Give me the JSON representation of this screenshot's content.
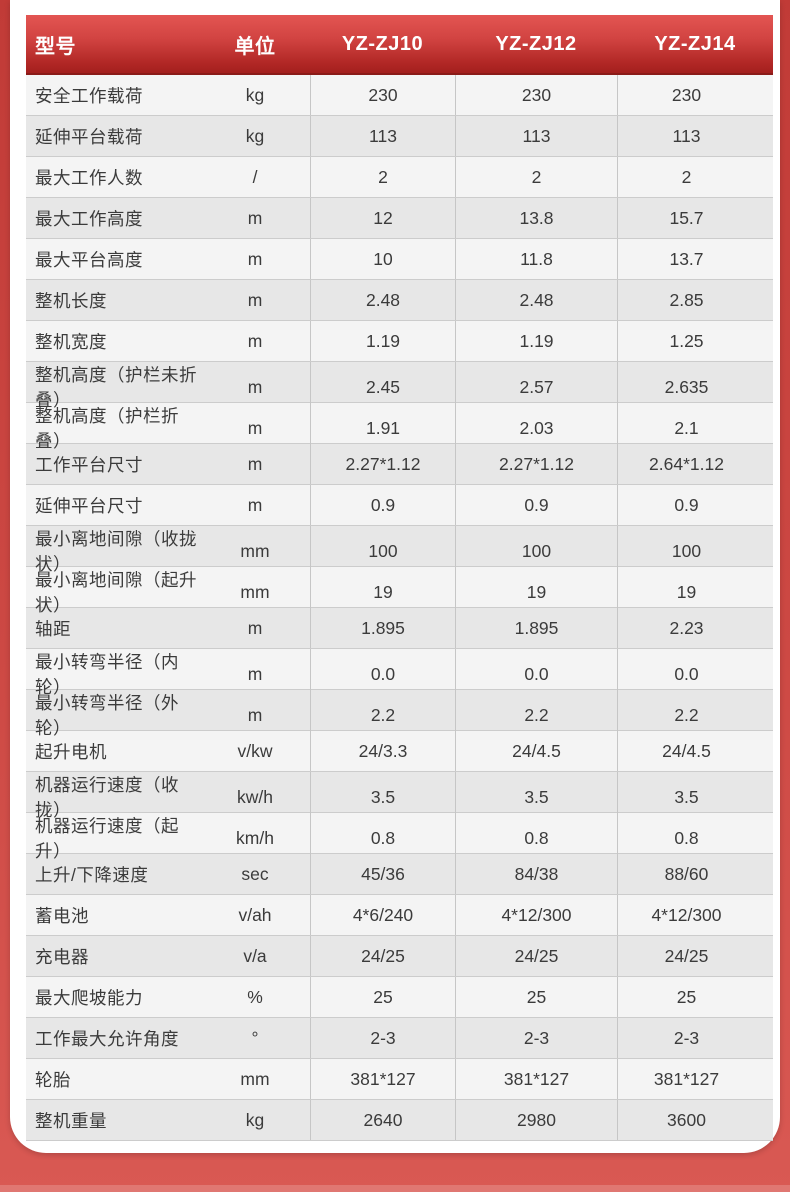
{
  "page": {
    "background_top_color": "#c13b37",
    "background_bottom_color": "#d95953",
    "card_color": "#ffffff"
  },
  "table": {
    "header": {
      "col_model": "型号",
      "col_unit": "单位",
      "models": [
        "YZ-ZJ10",
        "YZ-ZJ12",
        "YZ-ZJ14"
      ],
      "gradient_top": "#e35552",
      "gradient_bottom": "#a31f1d",
      "text_color": "#ffffff"
    },
    "row_colors": {
      "odd": "#f4f4f4",
      "even": "#e7e7e7"
    },
    "rows": [
      {
        "label": "安全工作载荷",
        "unit": "kg",
        "values": [
          "230",
          "230",
          "230"
        ]
      },
      {
        "label": "延伸平台载荷",
        "unit": "kg",
        "values": [
          "113",
          "113",
          "113"
        ]
      },
      {
        "label": "最大工作人数",
        "unit": "/",
        "values": [
          "2",
          "2",
          "2"
        ]
      },
      {
        "label": "最大工作高度",
        "unit": "m",
        "values": [
          "12",
          "13.8",
          "15.7"
        ]
      },
      {
        "label": "最大平台高度",
        "unit": "m",
        "values": [
          "10",
          "11.8",
          "13.7"
        ]
      },
      {
        "label": "整机长度",
        "unit": "m",
        "values": [
          "2.48",
          "2.48",
          "2.85"
        ]
      },
      {
        "label": "整机宽度",
        "unit": "m",
        "values": [
          "1.19",
          "1.19",
          "1.25"
        ]
      },
      {
        "label": "整机高度（护栏未折叠）",
        "unit": "m",
        "values": [
          "2.45",
          "2.57",
          "2.635"
        ]
      },
      {
        "label": "整机高度（护栏折叠）",
        "unit": "m",
        "values": [
          "1.91",
          "2.03",
          "2.1"
        ]
      },
      {
        "label": "工作平台尺寸",
        "unit": "m",
        "values": [
          "2.27*1.12",
          "2.27*1.12",
          "2.64*1.12"
        ]
      },
      {
        "label": "延伸平台尺寸",
        "unit": "m",
        "values": [
          "0.9",
          "0.9",
          "0.9"
        ]
      },
      {
        "label": "最小离地间隙（收拢状）",
        "unit": "mm",
        "values": [
          "100",
          "100",
          "100"
        ]
      },
      {
        "label": "最小离地间隙（起升状）",
        "unit": "mm",
        "values": [
          "19",
          "19",
          "19"
        ]
      },
      {
        "label": "轴距",
        "unit": "m",
        "values": [
          "1.895",
          "1.895",
          "2.23"
        ]
      },
      {
        "label": "最小转弯半径（内轮）",
        "unit": "m",
        "values": [
          "0.0",
          "0.0",
          "0.0"
        ]
      },
      {
        "label": "最小转弯半径（外轮）",
        "unit": "m",
        "values": [
          "2.2",
          "2.2",
          "2.2"
        ]
      },
      {
        "label": "起升电机",
        "unit": "v/kw",
        "values": [
          "24/3.3",
          "24/4.5",
          "24/4.5"
        ]
      },
      {
        "label": "机器运行速度（收拢）",
        "unit": "kw/h",
        "values": [
          "3.5",
          "3.5",
          "3.5"
        ]
      },
      {
        "label": "机器运行速度（起升）",
        "unit": "km/h",
        "values": [
          "0.8",
          "0.8",
          "0.8"
        ]
      },
      {
        "label": "上升/下降速度",
        "unit": "sec",
        "values": [
          "45/36",
          "84/38",
          "88/60"
        ]
      },
      {
        "label": "蓄电池",
        "unit": "v/ah",
        "values": [
          "4*6/240",
          "4*12/300",
          "4*12/300"
        ]
      },
      {
        "label": "充电器",
        "unit": "v/a",
        "values": [
          "24/25",
          "24/25",
          "24/25"
        ]
      },
      {
        "label": "最大爬坡能力",
        "unit": "%",
        "values": [
          "25",
          "25",
          "25"
        ]
      },
      {
        "label": "工作最大允许角度",
        "unit": "°",
        "values": [
          "2-3",
          "2-3",
          "2-3"
        ]
      },
      {
        "label": "轮胎",
        "unit": "mm",
        "values": [
          "381*127",
          "381*127",
          "381*127"
        ]
      },
      {
        "label": "整机重量",
        "unit": "kg",
        "values": [
          "2640",
          "2980",
          "3600"
        ]
      }
    ]
  }
}
